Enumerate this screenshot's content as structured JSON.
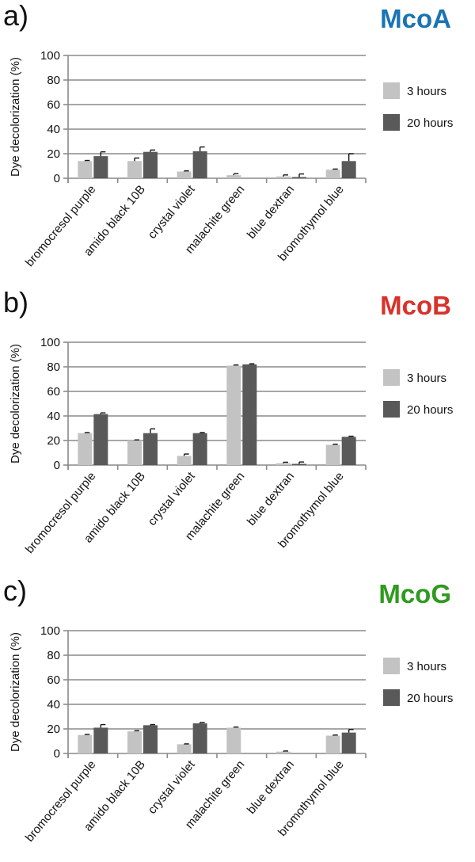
{
  "colors": {
    "h3": "#c3c3c3",
    "h20": "#595959",
    "axis": "#8a8a8a",
    "error": "#111111"
  },
  "ylabel": "Dye decolorization (%)",
  "legend": [
    "3 hours",
    "20 hours"
  ],
  "yticks": [
    "0",
    "20",
    "40",
    "60",
    "80",
    "100"
  ],
  "panels": [
    {
      "letter": "a)",
      "enzyme": "McoA",
      "enzyme_color": "#1a73b4"
    },
    {
      "letter": "b)",
      "enzyme": "McoB",
      "enzyme_color": "#d8322b"
    },
    {
      "letter": "c)",
      "enzyme": "McoG",
      "enzyme_color": "#2f9a1f"
    }
  ],
  "chart_data": [
    {
      "type": "bar",
      "title": "McoA",
      "ylabel": "Dye decolorization (%)",
      "ylim": [
        0,
        100
      ],
      "grid": true,
      "legend_position": "right",
      "categories": [
        "bromocresol purple",
        "amido black 10B",
        "crystal violet",
        "malachite green",
        "blue dextran",
        "bromothymol blue"
      ],
      "series": [
        {
          "name": "3 hours",
          "values": [
            14,
            14,
            5.5,
            2.5,
            1.5,
            7
          ],
          "errors": [
            0.5,
            2.5,
            0.5,
            1.2,
            1.2,
            0.5
          ]
        },
        {
          "name": "20 hours",
          "values": [
            18,
            21.5,
            22,
            0,
            1,
            14
          ],
          "errors": [
            3.5,
            1.5,
            3.5,
            0,
            2.5,
            6
          ]
        }
      ]
    },
    {
      "type": "bar",
      "title": "McoB",
      "ylabel": "Dye decolorization (%)",
      "ylim": [
        0,
        100
      ],
      "grid": true,
      "legend_position": "right",
      "categories": [
        "bromocresol purple",
        "amido black 10B",
        "crystal violet",
        "malachite green",
        "blue dextran",
        "bromothymol blue"
      ],
      "series": [
        {
          "name": "3 hours",
          "values": [
            26,
            20,
            7.5,
            81,
            1.5,
            16.5
          ],
          "errors": [
            0.5,
            0.5,
            1.5,
            0.5,
            0.8,
            0.5
          ]
        },
        {
          "name": "20 hours",
          "values": [
            41.5,
            26,
            26,
            82,
            1,
            23
          ],
          "errors": [
            1,
            3.5,
            0.5,
            0.5,
            1.5,
            0.5
          ]
        }
      ]
    },
    {
      "type": "bar",
      "title": "McoG",
      "ylabel": "Dye decolorization (%)",
      "ylim": [
        0,
        100
      ],
      "grid": true,
      "legend_position": "right",
      "categories": [
        "bromocresol purple",
        "amido black 10B",
        "crystal violet",
        "malachite green",
        "blue dextran",
        "bromothymol blue"
      ],
      "series": [
        {
          "name": "3 hours",
          "values": [
            15,
            18,
            7.5,
            21,
            1.5,
            14.5
          ],
          "errors": [
            0.5,
            0.5,
            0.3,
            0.5,
            0.5,
            0.5
          ]
        },
        {
          "name": "20 hours",
          "values": [
            21,
            23,
            24.5,
            0,
            0,
            17
          ],
          "errors": [
            2.5,
            0.5,
            0.8,
            0,
            0,
            2.5
          ]
        }
      ]
    }
  ]
}
